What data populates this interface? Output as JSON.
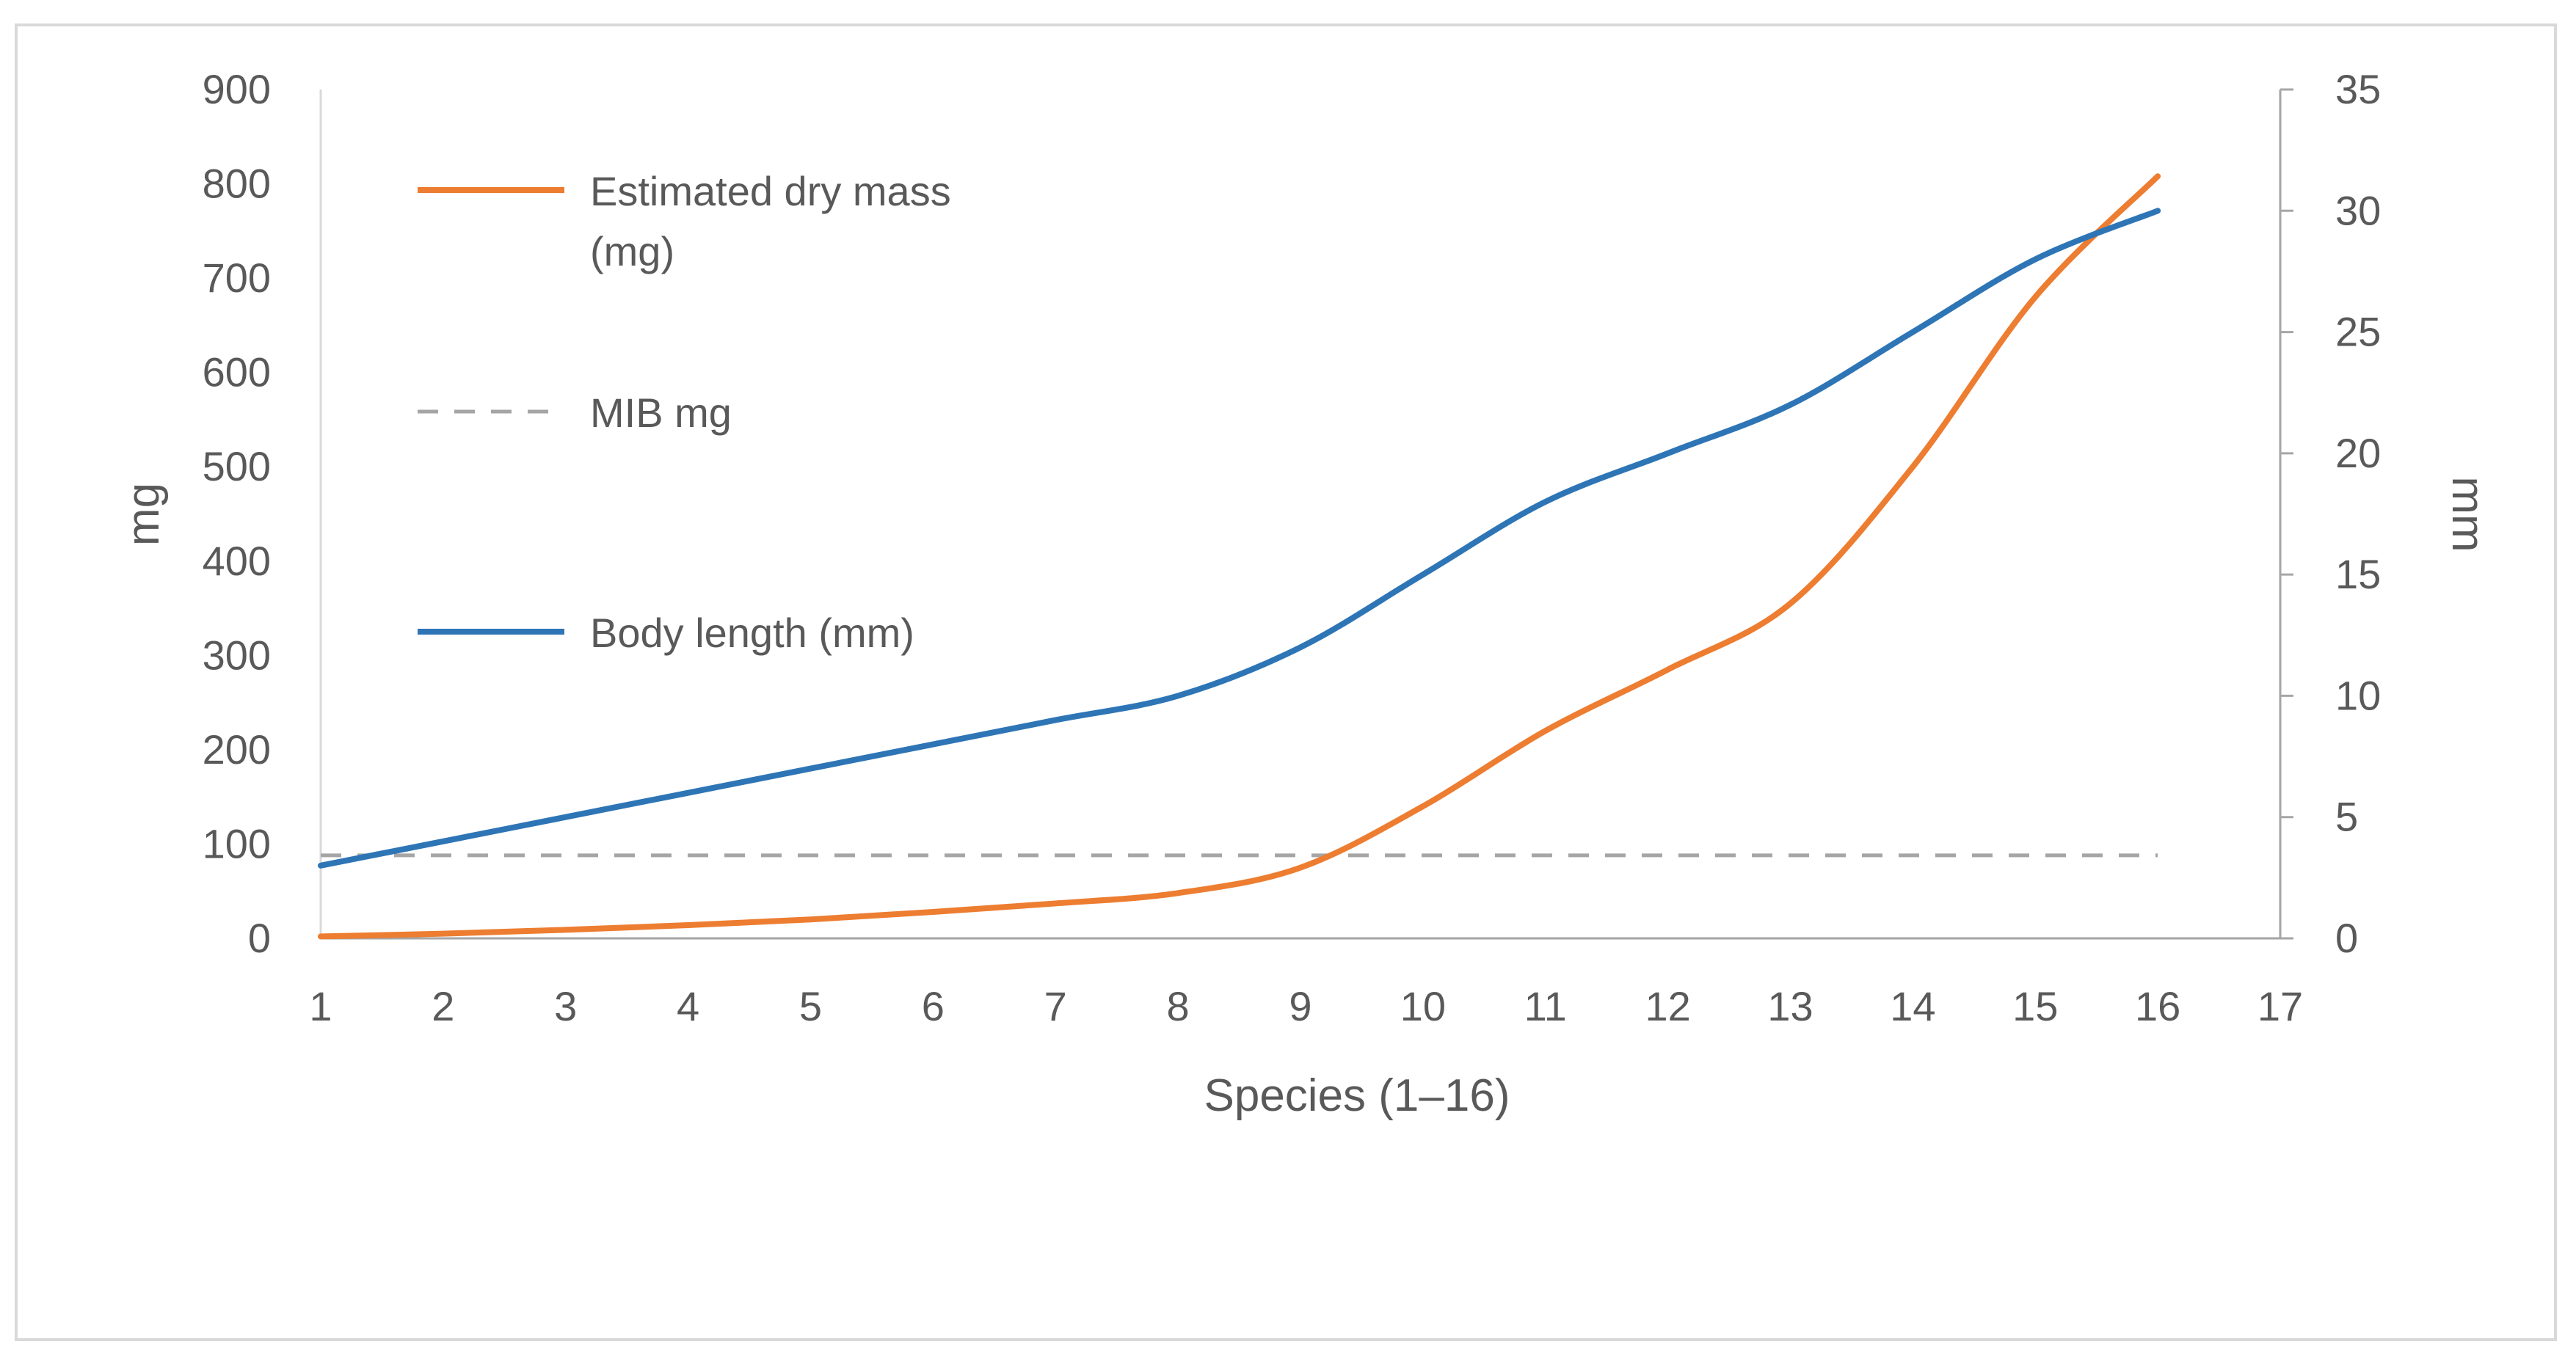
{
  "chart_data": {
    "type": "line",
    "title": "",
    "xlabel": "Species (1–16)",
    "ylabel_left": "mg",
    "ylabel_right": "mm",
    "x_ticks": [
      "1",
      "2",
      "3",
      "4",
      "5",
      "6",
      "7",
      "8",
      "9",
      "10",
      "11",
      "12",
      "13",
      "14",
      "15",
      "16",
      "17"
    ],
    "xlim": [
      1,
      17
    ],
    "ylim_left": [
      0,
      900
    ],
    "ylim_right": [
      0,
      35
    ],
    "y_ticks_left": [
      "0",
      "100",
      "200",
      "300",
      "400",
      "500",
      "600",
      "700",
      "800",
      "900"
    ],
    "y_ticks_right": [
      "0",
      "5",
      "10",
      "15",
      "20",
      "25",
      "30",
      "35"
    ],
    "grid": false,
    "legend_placement": "upper-left inside plot",
    "series": [
      {
        "name": "Estimated dry mass (mg)",
        "legend_lines": [
          "Estimated dry mass",
          "(mg)"
        ],
        "axis": "left",
        "color": "#ed7d31",
        "style": "solid",
        "x": [
          1,
          2,
          3,
          4,
          5,
          6,
          7,
          8,
          9,
          10,
          11,
          12,
          13,
          14,
          15,
          16
        ],
        "values": [
          2,
          5,
          9,
          14,
          20,
          28,
          37,
          48,
          75,
          140,
          220,
          285,
          355,
          500,
          680,
          808
        ]
      },
      {
        "name": "MIB mg",
        "legend_lines": [
          "MIB mg"
        ],
        "axis": "left",
        "color": "#a5a5a5",
        "style": "dashed",
        "x": [
          1,
          16
        ],
        "values": [
          88,
          88
        ]
      },
      {
        "name": "Body length (mm)",
        "legend_lines": [
          "Body length (mm)"
        ],
        "axis": "right",
        "color": "#2e75b6",
        "style": "solid",
        "x": [
          1,
          2,
          3,
          4,
          5,
          6,
          7,
          8,
          9,
          10,
          11,
          12,
          13,
          14,
          15,
          16
        ],
        "values": [
          3,
          4,
          5,
          6,
          7,
          8,
          9,
          10,
          12,
          15,
          18,
          20,
          22,
          25,
          28,
          30
        ]
      }
    ]
  }
}
